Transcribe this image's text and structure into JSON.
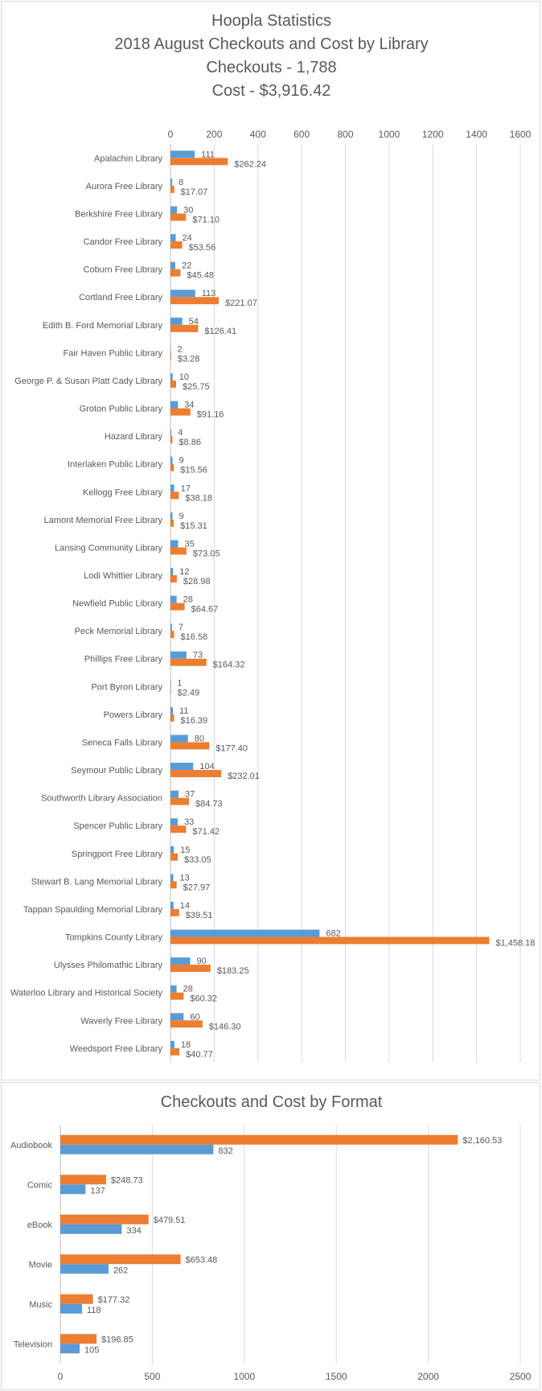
{
  "chart_data": [
    {
      "type": "bar",
      "orientation": "horizontal",
      "title": "Hoopla Statistics",
      "subtitle_lines": [
        "2018 August Checkouts and Cost by Library",
        "Checkouts - 1,788",
        "Cost - $3,916.42"
      ],
      "x_axis_position": "top",
      "xlim": [
        0,
        1600
      ],
      "x_ticks": [
        "0",
        "200",
        "400",
        "600",
        "800",
        "1000",
        "1200",
        "1400",
        "1600"
      ],
      "grid": true,
      "legend": "none",
      "categories": [
        "Apalachin Library",
        "Aurora Free Library",
        "Berkshire Free Library",
        "Candor Free Library",
        "Coburn Free Library",
        "Cortland Free Library",
        "Edith B. Ford Memorial Library",
        "Fair Haven Public Library",
        "George P. & Susan Platt Cady Library",
        "Groton Public Library",
        "Hazard Library",
        "Interlaken Public Library",
        "Kellogg Free Library",
        "Lamont Memorial Free Library",
        "Lansing Community Library",
        "Lodi Whittier Library",
        "Newfield Public Library",
        "Peck Memorial Library",
        "Phillips Free Library",
        "Port Byron Library",
        "Powers Library",
        "Seneca Falls Library",
        "Seymour Public Library",
        "Southworth Library Association",
        "Spencer Public Library",
        "Springport Free Library",
        "Stewart B. Lang Memorial Library",
        "Tappan Spaulding Memorial Library",
        "Tompkins County Library",
        "Ulysses Philomathic Library",
        "Waterloo Library and Historical Society",
        "Waverly Free Library",
        "Weedsport Free Library"
      ],
      "series": [
        {
          "color": "#5B9BD5",
          "values": [
            111,
            8,
            30,
            24,
            22,
            113,
            54,
            2,
            10,
            34,
            4,
            9,
            17,
            9,
            35,
            12,
            28,
            7,
            73,
            1,
            11,
            80,
            104,
            37,
            33,
            15,
            13,
            14,
            682,
            90,
            28,
            60,
            18
          ],
          "labels": [
            "111",
            "8",
            "30",
            "24",
            "22",
            "113",
            "54",
            "2",
            "10",
            "34",
            "4",
            "9",
            "17",
            "9",
            "35",
            "12",
            "28",
            "7",
            "73",
            "1",
            "11",
            "80",
            "104",
            "37",
            "33",
            "15",
            "13",
            "14",
            "682",
            "90",
            "28",
            "60",
            "18"
          ]
        },
        {
          "color": "#ED7D31",
          "values": [
            262.24,
            17.07,
            71.1,
            53.56,
            45.48,
            221.07,
            126.41,
            3.28,
            25.75,
            91.16,
            8.86,
            15.56,
            38.18,
            15.31,
            73.05,
            28.98,
            64.67,
            16.58,
            164.32,
            2.49,
            16.39,
            177.4,
            232.01,
            84.73,
            71.42,
            33.05,
            27.97,
            39.51,
            1458.18,
            183.25,
            60.32,
            146.3,
            40.77
          ],
          "labels": [
            "$262.24",
            "$17.07",
            "$71.10",
            "$53.56",
            "$45.48",
            "$221.07",
            "$126.41",
            "$3.28",
            "$25.75",
            "$91.16",
            "$8.86",
            "$15.56",
            "$38.18",
            "$15.31",
            "$73.05",
            "$28.98",
            "$64.67",
            "$16.58",
            "$164.32",
            "$2.49",
            "$16.39",
            "$177.40",
            "$232.01",
            "$84.73",
            "$71.42",
            "$33.05",
            "$27.97",
            "$39.51",
            "$1,458.18",
            "$183.25",
            "$60.32",
            "$146.30",
            "$40.77"
          ]
        }
      ]
    },
    {
      "type": "bar",
      "orientation": "horizontal",
      "title": "Checkouts and Cost by Format",
      "x_axis_position": "bottom",
      "xlim": [
        0,
        2500
      ],
      "x_ticks": [
        "0",
        "500",
        "1000",
        "1500",
        "2000",
        "2500"
      ],
      "grid": true,
      "legend": "none",
      "categories": [
        "Audiobook",
        "Comic",
        "eBook",
        "Movie",
        "Music",
        "Television"
      ],
      "series": [
        {
          "color": "#ED7D31",
          "values": [
            2160.53,
            248.73,
            479.51,
            653.48,
            177.32,
            196.85
          ],
          "labels": [
            "$2,160.53",
            "$248.73",
            "$479.51",
            "$653.48",
            "$177.32",
            "$196.85"
          ]
        },
        {
          "color": "#5B9BD5",
          "values": [
            832,
            137,
            334,
            262,
            118,
            105
          ],
          "labels": [
            "832",
            "137",
            "334",
            "262",
            "118",
            "105"
          ]
        }
      ]
    }
  ]
}
